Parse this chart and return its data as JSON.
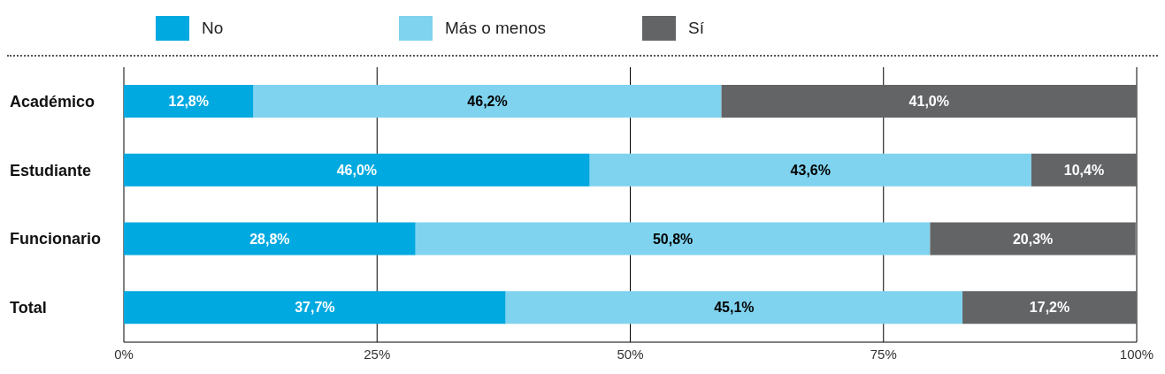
{
  "chart_data": {
    "type": "bar",
    "orientation": "horizontal",
    "stacked": true,
    "categories": [
      "Académico",
      "Estudiante",
      "Funcionario",
      "Total"
    ],
    "series": [
      {
        "name": "No",
        "color": "#00a9e0",
        "values": [
          12.8,
          46.0,
          28.8,
          37.7
        ],
        "value_labels": [
          "12,8%",
          "46,0%",
          "28,8%",
          "37,7%"
        ]
      },
      {
        "name": "Más o menos",
        "color": "#7fd3ef",
        "values": [
          46.2,
          43.6,
          50.8,
          45.1
        ],
        "value_labels": [
          "46,2%",
          "43,6%",
          "50,8%",
          "45,1%"
        ]
      },
      {
        "name": "Sí",
        "color": "#636466",
        "values": [
          41.0,
          10.4,
          20.3,
          17.2
        ],
        "value_labels": [
          "41,0%",
          "10,4%",
          "20,3%",
          "17,2%"
        ]
      }
    ],
    "xlim": [
      0,
      100
    ],
    "xticks": [
      {
        "value": 0,
        "label": "0%"
      },
      {
        "value": 25,
        "label": "25%"
      },
      {
        "value": 50,
        "label": "50%"
      },
      {
        "value": 75,
        "label": "75%"
      },
      {
        "value": 100,
        "label": "100%"
      }
    ],
    "grid": "x",
    "legend": "top"
  }
}
